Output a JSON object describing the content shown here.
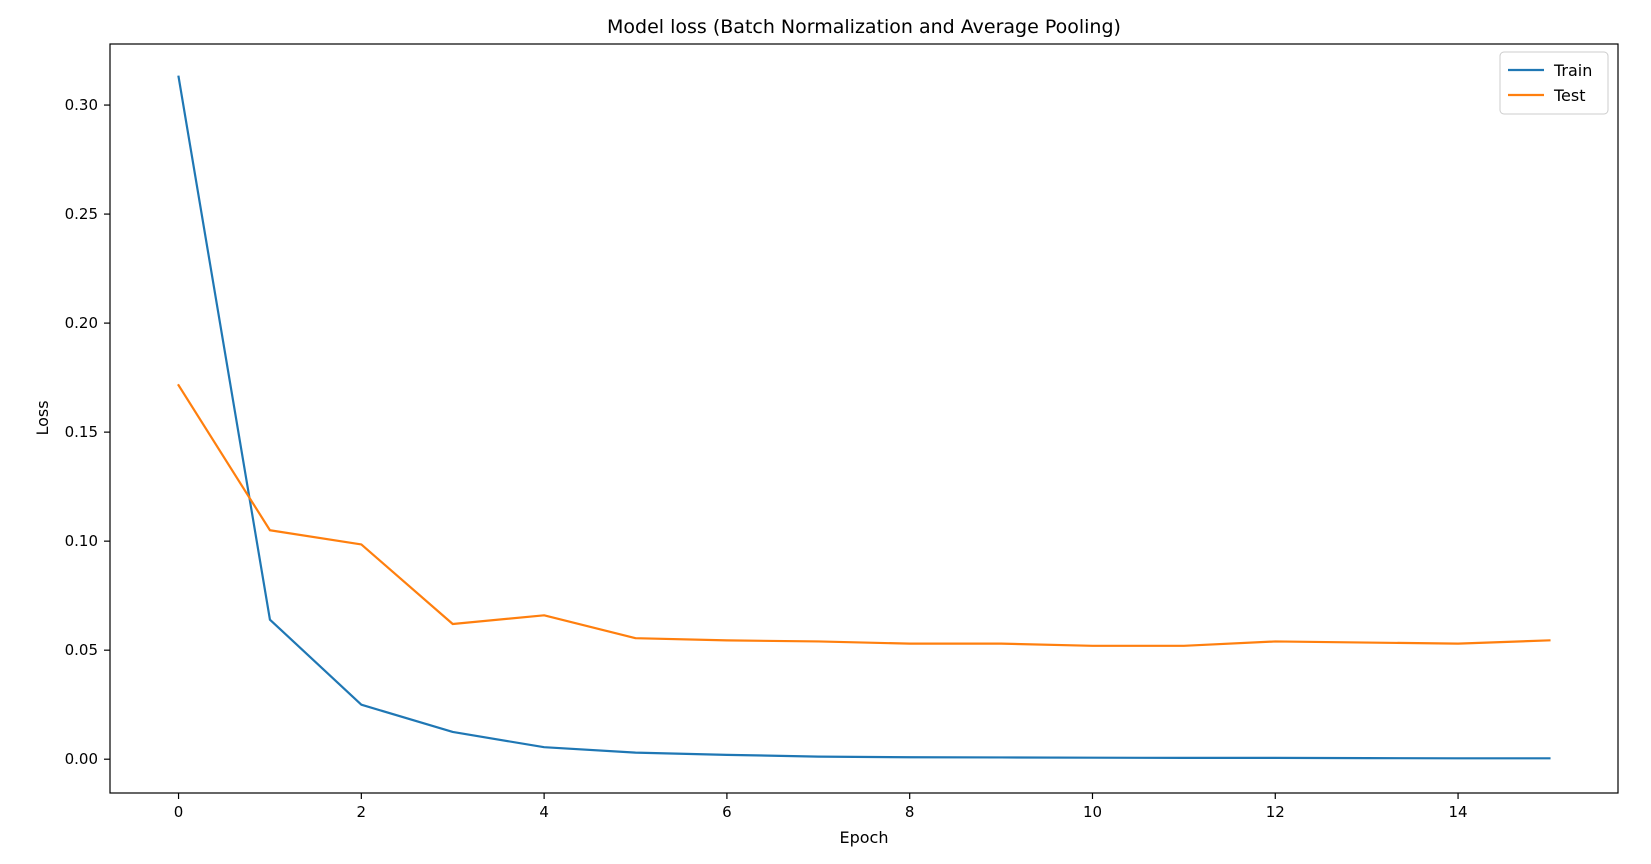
{
  "chart_data": {
    "type": "line",
    "title": "Model loss (Batch Normalization and Average Pooling)",
    "xlabel": "Epoch",
    "ylabel": "Loss",
    "xlim": [
      -0.75,
      15.75
    ],
    "ylim": [
      -0.0155,
      0.328
    ],
    "x_ticks": [
      0,
      2,
      4,
      6,
      8,
      10,
      12,
      14
    ],
    "y_ticks": [
      0.0,
      0.05,
      0.1,
      0.15,
      0.2,
      0.25,
      0.3
    ],
    "y_tick_labels": [
      "0.00",
      "0.05",
      "0.10",
      "0.15",
      "0.20",
      "0.25",
      "0.30"
    ],
    "grid": false,
    "legend_position": "top-right",
    "x": [
      0,
      1,
      2,
      3,
      4,
      5,
      6,
      7,
      8,
      9,
      10,
      11,
      12,
      13,
      14,
      15
    ],
    "series": [
      {
        "name": "Train",
        "color": "#1f77b4",
        "values": [
          0.313,
          0.064,
          0.025,
          0.0125,
          0.0055,
          0.003,
          0.002,
          0.0012,
          0.0009,
          0.0008,
          0.0007,
          0.0006,
          0.0006,
          0.0005,
          0.0004,
          0.0004
        ]
      },
      {
        "name": "Test",
        "color": "#ff7f0e",
        "values": [
          0.1715,
          0.105,
          0.0985,
          0.062,
          0.066,
          0.0555,
          0.0545,
          0.054,
          0.053,
          0.053,
          0.052,
          0.052,
          0.054,
          0.0535,
          0.053,
          0.0545
        ]
      }
    ]
  }
}
